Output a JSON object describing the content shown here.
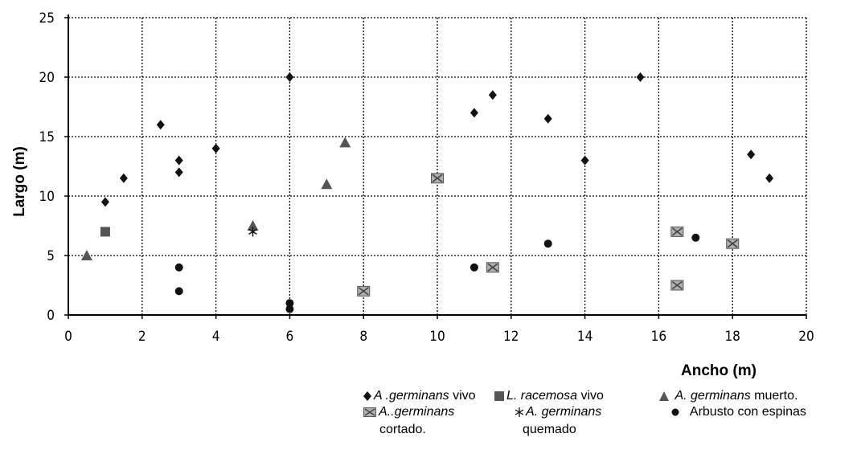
{
  "chart_data": {
    "type": "scatter",
    "xlabel": "Ancho (m)",
    "ylabel": "Largo (m)",
    "xlim": [
      0,
      20
    ],
    "ylim": [
      0,
      25
    ],
    "x_ticks": [
      "0",
      "2",
      "4",
      "6",
      "8",
      "10",
      "12",
      "14",
      "16",
      "18",
      "20"
    ],
    "y_ticks": [
      "0",
      "5",
      "10",
      "15",
      "20",
      "25"
    ],
    "grid": true,
    "legend_position": "bottom-right",
    "series": [
      {
        "name": "A .germinans vivo",
        "marker": "diamond",
        "color": "#111111",
        "points": [
          [
            1,
            9.5
          ],
          [
            1.5,
            11.5
          ],
          [
            2.5,
            16
          ],
          [
            3,
            13
          ],
          [
            3,
            12
          ],
          [
            4,
            14
          ],
          [
            6,
            20
          ],
          [
            11,
            17
          ],
          [
            11.5,
            18.5
          ],
          [
            13,
            16.5
          ],
          [
            14,
            13
          ],
          [
            15.5,
            20
          ],
          [
            18.5,
            13.5
          ],
          [
            19,
            11.5
          ]
        ]
      },
      {
        "name": "L. racemosa vivo",
        "marker": "square",
        "color": "#555555",
        "points": [
          [
            1,
            7
          ]
        ]
      },
      {
        "name": "A. germinans muerto.",
        "marker": "triangle",
        "color": "#555555",
        "points": [
          [
            0.5,
            5
          ],
          [
            5,
            7.5
          ],
          [
            7,
            11
          ],
          [
            7.5,
            14.5
          ]
        ]
      },
      {
        "name": "A..germinans cortado.",
        "marker": "crossed-square",
        "color": "#b0b0b0",
        "points": [
          [
            8,
            2
          ],
          [
            10,
            11.5
          ],
          [
            11.5,
            4
          ],
          [
            16.5,
            7
          ],
          [
            16.5,
            2.5
          ],
          [
            18,
            6
          ]
        ]
      },
      {
        "name": "A. germinans quemado",
        "marker": "asterisk",
        "color": "#111111",
        "points": [
          [
            5,
            7
          ]
        ]
      },
      {
        "name": "Arbusto con espinas",
        "marker": "circle",
        "color": "#111111",
        "points": [
          [
            3,
            4
          ],
          [
            3,
            2
          ],
          [
            6,
            1
          ],
          [
            6,
            0.5
          ],
          [
            11,
            4
          ],
          [
            13,
            6
          ],
          [
            17,
            6.5
          ]
        ]
      }
    ]
  },
  "legend": {
    "item1_prefix": "A .",
    "item1_italic": "germinans",
    "item1_suffix": " vivo",
    "item2_italic": "L. racemosa",
    "item2_suffix": " vivo",
    "item3_italic": "A. germinans",
    "item3_suffix": " muerto.",
    "item4_italic": "A..germinans",
    "item4_line2": "cortado.",
    "item5_italic": "A. germinans",
    "item5_line2": "quemado",
    "item6_text": "Arbusto con espinas"
  }
}
